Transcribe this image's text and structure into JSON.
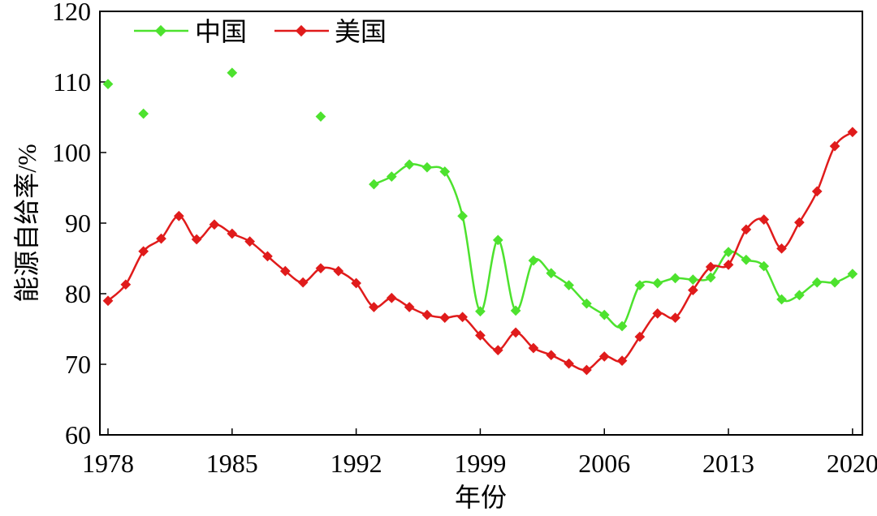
{
  "chart_data": {
    "type": "line",
    "xlabel": "年份",
    "ylabel": "能源自给率/%",
    "xlim": [
      1978,
      2020
    ],
    "ylim": [
      60,
      120
    ],
    "xticks": [
      1978,
      1985,
      1992,
      1999,
      2006,
      2013,
      2020
    ],
    "yticks": [
      60,
      70,
      80,
      90,
      100,
      110,
      120
    ],
    "grid": false,
    "legend": "top-left",
    "x": [
      1978,
      1979,
      1980,
      1981,
      1982,
      1983,
      1984,
      1985,
      1986,
      1987,
      1988,
      1989,
      1990,
      1991,
      1992,
      1993,
      1994,
      1995,
      1996,
      1997,
      1998,
      1999,
      2000,
      2001,
      2002,
      2003,
      2004,
      2005,
      2006,
      2007,
      2008,
      2009,
      2010,
      2011,
      2012,
      2013,
      2014,
      2015,
      2016,
      2017,
      2018,
      2019,
      2020
    ],
    "series": [
      {
        "name": "中国",
        "color": "#4de22e",
        "values": [
          109.7,
          null,
          105.5,
          null,
          null,
          null,
          null,
          111.3,
          null,
          null,
          null,
          null,
          105.1,
          null,
          null,
          95.5,
          96.6,
          98.3,
          97.9,
          97.3,
          91.0,
          77.5,
          87.6,
          77.6,
          84.7,
          82.9,
          81.2,
          78.6,
          77.0,
          75.4,
          81.2,
          81.5,
          82.2,
          82.0,
          82.3,
          85.9,
          84.8,
          83.9,
          79.2,
          79.8,
          81.6,
          81.6,
          82.8
        ]
      },
      {
        "name": "美国",
        "color": "#e01b1b",
        "values": [
          79.0,
          81.3,
          86.0,
          87.8,
          91.0,
          87.7,
          89.8,
          88.5,
          87.4,
          85.3,
          83.2,
          81.6,
          83.6,
          83.2,
          81.5,
          78.1,
          79.4,
          78.1,
          77.0,
          76.6,
          76.7,
          74.1,
          72.0,
          74.5,
          72.3,
          71.3,
          70.1,
          69.2,
          71.1,
          70.5,
          73.9,
          77.2,
          76.6,
          80.5,
          83.8,
          84.1,
          89.1,
          90.5,
          86.4,
          90.1,
          94.5,
          100.9,
          102.9
        ]
      }
    ]
  }
}
